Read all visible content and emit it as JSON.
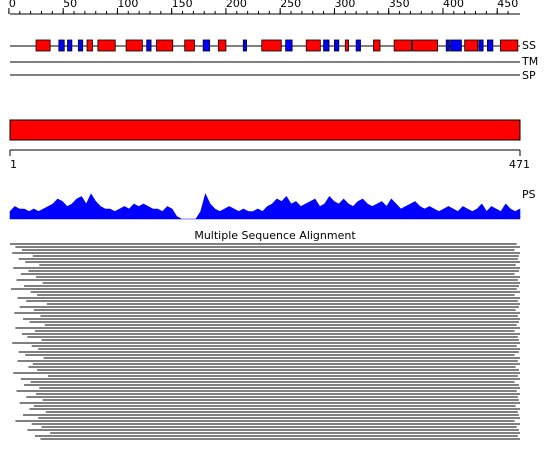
{
  "sequence": {
    "start": 1,
    "end": 471
  },
  "axis": {
    "ticks": [
      0,
      50,
      100,
      150,
      200,
      250,
      300,
      350,
      400,
      450
    ],
    "minor_ticks": [
      0,
      10,
      20,
      30,
      40,
      50,
      60,
      70,
      80,
      90,
      100,
      110,
      120,
      130,
      140,
      150,
      160,
      170,
      180,
      190,
      200,
      210,
      220,
      230,
      240,
      250,
      260,
      270,
      280,
      290,
      300,
      310,
      320,
      330,
      340,
      350,
      360,
      370,
      380,
      390,
      400,
      410,
      420,
      430,
      440,
      450,
      460
    ]
  },
  "tracks": {
    "ss": {
      "label": "SS",
      "helix_color": "#ff0000",
      "strand_color": "#0000ff",
      "helices": [
        [
          25,
          38
        ],
        [
          72,
          77
        ],
        [
          82,
          98
        ],
        [
          108,
          123
        ],
        [
          136,
          151
        ],
        [
          162,
          171
        ],
        [
          193,
          200
        ],
        [
          233,
          251
        ],
        [
          274,
          287
        ],
        [
          310,
          313
        ],
        [
          336,
          342
        ],
        [
          355,
          371
        ],
        [
          372,
          395
        ],
        [
          420,
          432
        ],
        [
          453,
          469
        ]
      ],
      "strands": [
        [
          46,
          51
        ],
        [
          54,
          58
        ],
        [
          64,
          68
        ],
        [
          127,
          131
        ],
        [
          179,
          185
        ],
        [
          216,
          219
        ],
        [
          255,
          261
        ],
        [
          290,
          295
        ],
        [
          300,
          304
        ],
        [
          320,
          324
        ],
        [
          403,
          406
        ],
        [
          407,
          417
        ],
        [
          433,
          437
        ],
        [
          441,
          446
        ]
      ]
    },
    "tm": {
      "label": "TM"
    },
    "sp": {
      "label": "SP"
    }
  },
  "domain_bar": {
    "color": "#ff0000"
  },
  "ps": {
    "label": "PS",
    "color": "#0000ff",
    "values": [
      3,
      5,
      4,
      4,
      3,
      4,
      3,
      4,
      5,
      6,
      8,
      7,
      5,
      6,
      8,
      9,
      6,
      10,
      7,
      5,
      4,
      4,
      3,
      4,
      5,
      4,
      6,
      5,
      6,
      5,
      4,
      4,
      3,
      5,
      4,
      1,
      0,
      0,
      0,
      0,
      3,
      10,
      6,
      4,
      3,
      4,
      5,
      4,
      3,
      4,
      3,
      3,
      4,
      3,
      5,
      6,
      8,
      7,
      9,
      6,
      7,
      5,
      6,
      7,
      8,
      5,
      6,
      9,
      7,
      6,
      8,
      6,
      5,
      7,
      8,
      6,
      5,
      6,
      7,
      5,
      8,
      6,
      4,
      5,
      6,
      7,
      5,
      4,
      5,
      4,
      3,
      4,
      5,
      4,
      3,
      5,
      4,
      3,
      4,
      6,
      3,
      5,
      4,
      3,
      6,
      4,
      3,
      4
    ]
  },
  "msa": {
    "title": "Multiple Sequence Alignment",
    "alignments": [
      [
        1,
        468
      ],
      [
        6,
        471
      ],
      [
        12,
        466
      ],
      [
        3,
        471
      ],
      [
        22,
        470
      ],
      [
        9,
        469
      ],
      [
        15,
        471
      ],
      [
        28,
        467
      ],
      [
        4,
        471
      ],
      [
        18,
        470
      ],
      [
        11,
        466
      ],
      [
        25,
        471
      ],
      [
        7,
        469
      ],
      [
        31,
        471
      ],
      [
        14,
        470
      ],
      [
        2,
        468
      ],
      [
        20,
        471
      ],
      [
        26,
        466
      ],
      [
        8,
        471
      ],
      [
        16,
        469
      ],
      [
        35,
        471
      ],
      [
        10,
        470
      ],
      [
        23,
        467
      ],
      [
        5,
        471
      ],
      [
        29,
        469
      ],
      [
        13,
        471
      ],
      [
        19,
        470
      ],
      [
        33,
        468
      ],
      [
        6,
        471
      ],
      [
        24,
        466
      ],
      [
        12,
        471
      ],
      [
        17,
        469
      ],
      [
        30,
        470
      ],
      [
        3,
        471
      ],
      [
        21,
        468
      ],
      [
        27,
        471
      ],
      [
        9,
        470
      ],
      [
        15,
        466
      ],
      [
        32,
        471
      ],
      [
        8,
        469
      ],
      [
        22,
        471
      ],
      [
        18,
        467
      ],
      [
        26,
        470
      ],
      [
        4,
        471
      ],
      [
        36,
        469
      ],
      [
        11,
        471
      ],
      [
        20,
        466
      ],
      [
        14,
        470
      ],
      [
        28,
        471
      ],
      [
        7,
        468
      ],
      [
        25,
        471
      ],
      [
        16,
        469
      ],
      [
        31,
        470
      ],
      [
        10,
        471
      ],
      [
        23,
        467
      ],
      [
        19,
        471
      ],
      [
        34,
        469
      ],
      [
        13,
        470
      ],
      [
        27,
        471
      ],
      [
        6,
        466
      ],
      [
        21,
        471
      ],
      [
        30,
        468
      ],
      [
        17,
        470
      ],
      [
        38,
        471
      ],
      [
        24,
        469
      ],
      [
        29,
        471
      ]
    ]
  }
}
